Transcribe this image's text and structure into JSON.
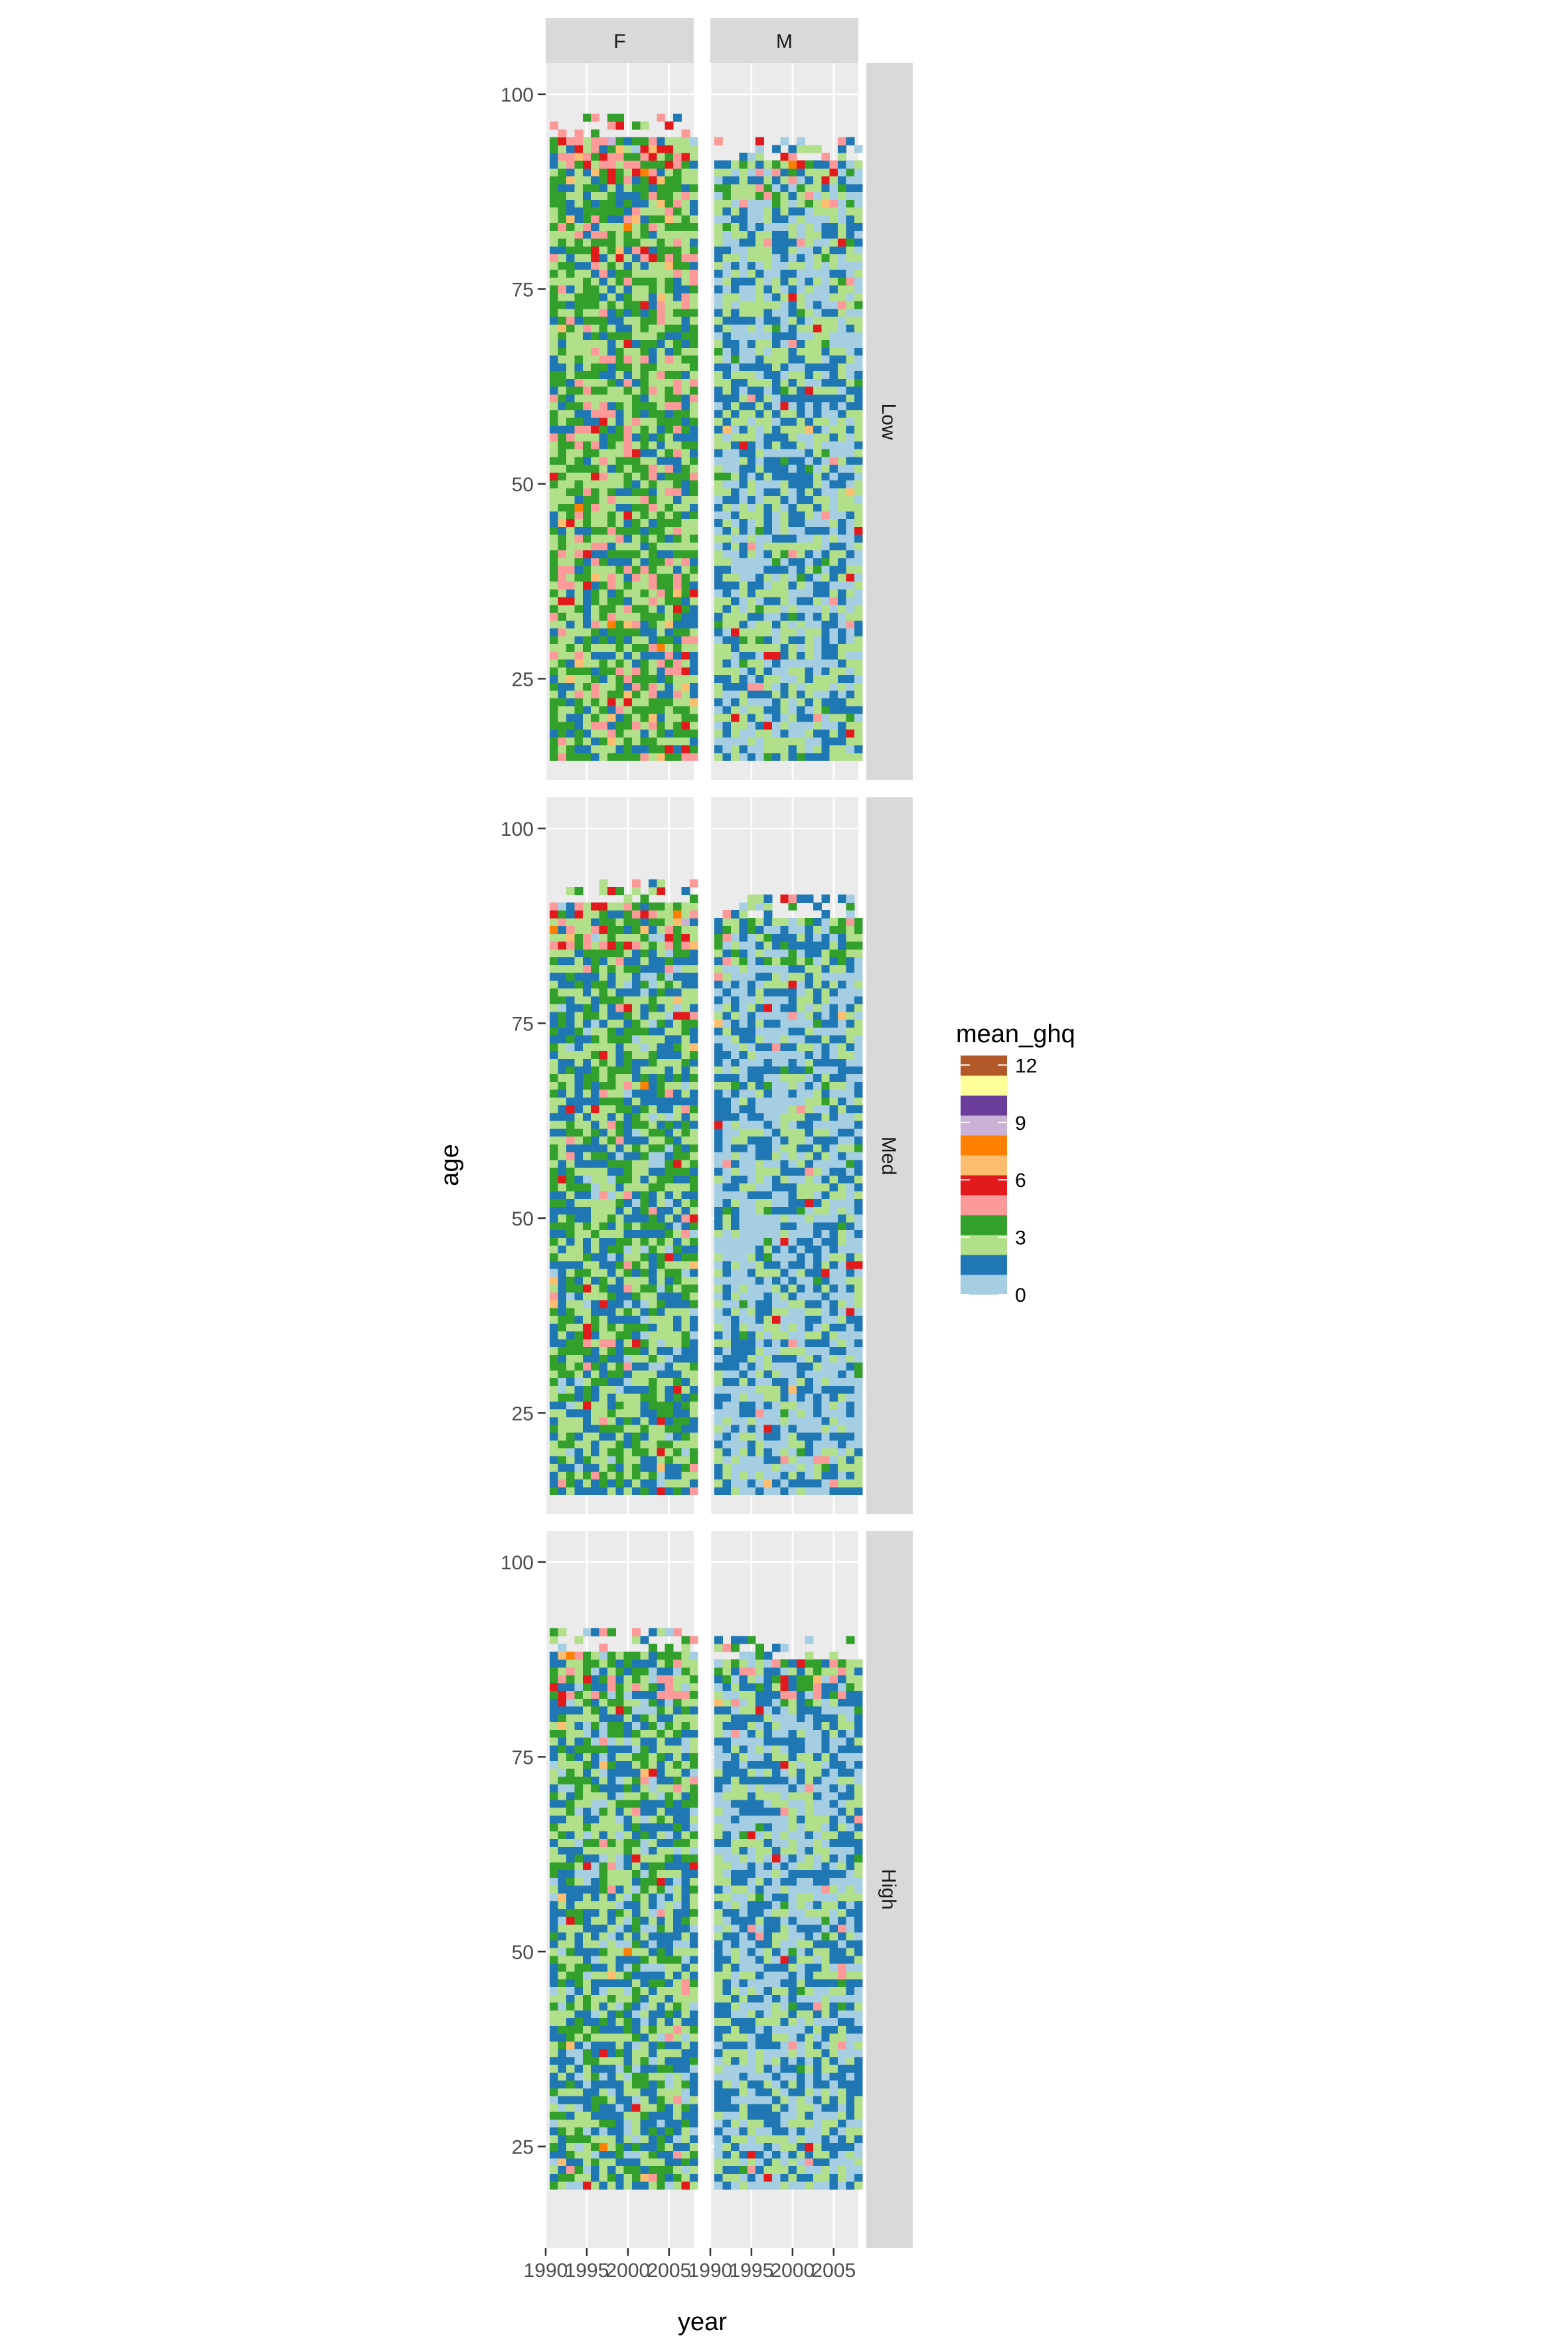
{
  "chart_data": {
    "type": "heatmap",
    "title": "",
    "xlabel": "year",
    "ylabel": "age",
    "x_ticks": [
      1990,
      1995,
      2000,
      2005
    ],
    "x_tick_labels": [
      "1990",
      "1995",
      "2000",
      "2005"
    ],
    "y_ticks": [
      25,
      50,
      75,
      100
    ],
    "y_tick_labels": [
      "25",
      "50",
      "75",
      "100"
    ],
    "xlim": [
      1990,
      2008
    ],
    "ylim": [
      12,
      104
    ],
    "cells": {
      "x_range": [
        1991,
        2008
      ],
      "x_step": 1,
      "y_step": 1
    },
    "grid": true,
    "facet_cols": [
      "F",
      "M"
    ],
    "facet_rows": [
      "Low",
      "Med",
      "High"
    ],
    "legend": {
      "title": "mean_ghq",
      "position": "right",
      "breaks": [
        0,
        3,
        6,
        9,
        12
      ],
      "break_labels": [
        "0",
        "3",
        "6",
        "9",
        "12"
      ],
      "range": [
        0,
        12.5
      ],
      "palette": [
        "#a6cee3",
        "#1f78b4",
        "#b2df8a",
        "#33a02c",
        "#fb9a99",
        "#e31a1c",
        "#fdbf6f",
        "#ff7f00",
        "#cab2d6",
        "#6a3d9a",
        "#ffff99",
        "#b15928"
      ]
    },
    "panels": [
      {
        "sex": "F",
        "income": "Low",
        "age_min": 15,
        "age_max": 94,
        "typical_mean_ghq": 3.0
      },
      {
        "sex": "M",
        "income": "Low",
        "age_min": 15,
        "age_max": 91,
        "typical_mean_ghq": 1.6
      },
      {
        "sex": "F",
        "income": "Med",
        "age_min": 15,
        "age_max": 90,
        "typical_mean_ghq": 2.4
      },
      {
        "sex": "M",
        "income": "Med",
        "age_min": 15,
        "age_max": 88,
        "typical_mean_ghq": 1.3
      },
      {
        "sex": "F",
        "income": "High",
        "age_min": 20,
        "age_max": 88,
        "typical_mean_ghq": 2.2
      },
      {
        "sex": "M",
        "income": "High",
        "age_min": 20,
        "age_max": 87,
        "typical_mean_ghq": 1.5
      }
    ]
  }
}
